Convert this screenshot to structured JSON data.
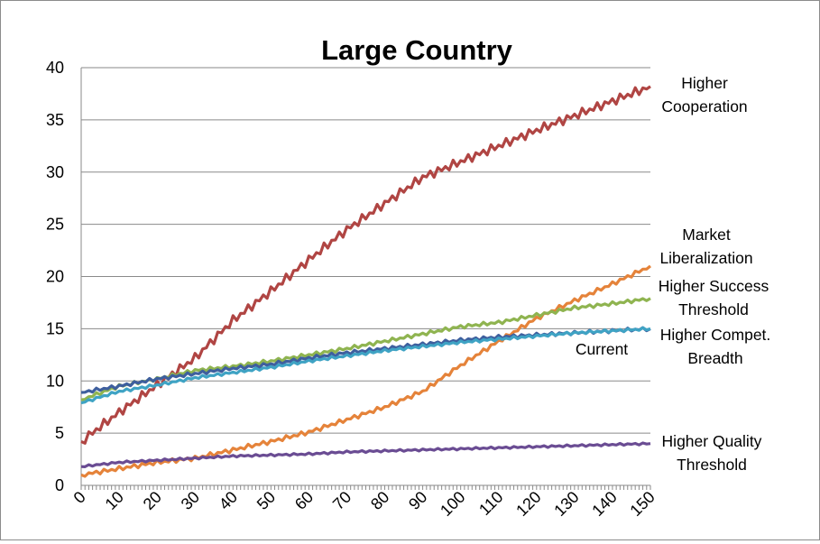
{
  "chart_data": {
    "type": "line",
    "title": "Large Country",
    "xlabel": "",
    "ylabel": "",
    "xlim": [
      0,
      150
    ],
    "ylim": [
      0,
      40
    ],
    "y_ticks": [
      "0",
      "5",
      "10",
      "15",
      "20",
      "25",
      "30",
      "35",
      "40"
    ],
    "x_ticks": [
      "0",
      "10",
      "20",
      "30",
      "40",
      "50",
      "60",
      "70",
      "80",
      "90",
      "100",
      "110",
      "120",
      "130",
      "140",
      "150"
    ],
    "grid": "horizontal",
    "legend": "none (series labeled directly at right)",
    "x": [
      0,
      10,
      20,
      30,
      40,
      50,
      60,
      70,
      80,
      90,
      100,
      110,
      120,
      130,
      140,
      150
    ],
    "series": [
      {
        "name": "Higher Cooperation",
        "label_lines": [
          "Higher",
          "Cooperation"
        ],
        "color": "#b04543",
        "values": [
          4.2,
          7.0,
          9.6,
          12.2,
          15.8,
          18.6,
          21.6,
          24.5,
          27.0,
          29.5,
          31.0,
          32.5,
          34.0,
          35.4,
          36.8,
          38.2
        ]
      },
      {
        "name": "Market Liberalization",
        "label_lines": [
          "Market",
          "Liberalization"
        ],
        "color": "#e5833a",
        "values": [
          1.0,
          1.6,
          2.2,
          2.6,
          3.4,
          4.2,
          5.1,
          6.3,
          7.5,
          9.0,
          11.5,
          13.8,
          16.0,
          17.7,
          19.3,
          21.0
        ]
      },
      {
        "name": "Higher Success Threshold",
        "label_lines": [
          "Higher Success",
          "Threshold"
        ],
        "color": "#8fb450",
        "values": [
          8.2,
          9.5,
          10.2,
          11.0,
          11.4,
          11.9,
          12.5,
          13.1,
          13.8,
          14.5,
          15.2,
          15.6,
          16.3,
          17.0,
          17.4,
          17.9
        ]
      },
      {
        "name": "Current",
        "label_lines": [
          "Current"
        ],
        "color": "#3e5f9e",
        "values": [
          8.9,
          9.5,
          10.2,
          10.7,
          11.2,
          11.6,
          12.2,
          12.7,
          13.1,
          13.5,
          13.9,
          14.2,
          14.4,
          14.6,
          14.8,
          15.0
        ]
      },
      {
        "name": "Higher Compet. Breadth",
        "label_lines": [
          "Higher Compet.",
          "Breadth"
        ],
        "color": "#3fa3c4",
        "values": [
          7.9,
          9.0,
          9.6,
          10.3,
          10.8,
          11.3,
          11.9,
          12.4,
          12.9,
          13.3,
          13.7,
          14.0,
          14.3,
          14.6,
          14.8,
          15.0
        ]
      },
      {
        "name": "Higher Quality Threshold",
        "label_lines": [
          "Higher Quality",
          "Threshold"
        ],
        "color": "#6a4c93",
        "values": [
          1.8,
          2.2,
          2.4,
          2.6,
          2.8,
          2.9,
          3.0,
          3.2,
          3.3,
          3.4,
          3.5,
          3.6,
          3.7,
          3.8,
          3.9,
          4.0
        ]
      }
    ]
  }
}
